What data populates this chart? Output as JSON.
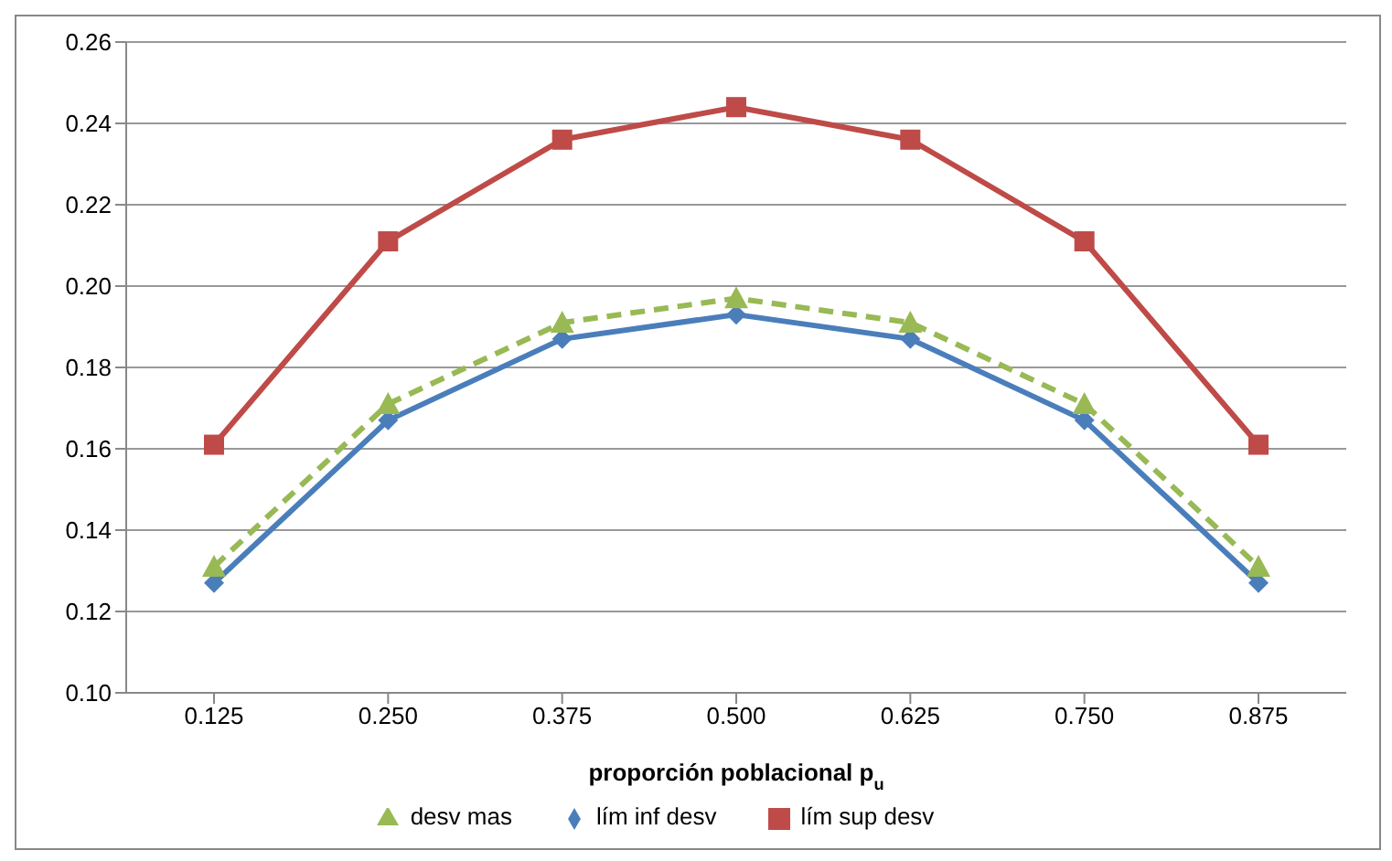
{
  "chart_data": {
    "type": "line",
    "xlabel": "proporción poblacional p$_{u}$",
    "categories": [
      "0.125",
      "0.250",
      "0.375",
      "0.500",
      "0.625",
      "0.750",
      "0.875"
    ],
    "series": [
      {
        "name": "lím inf desv",
        "color": "#4a7ebb",
        "marker": "diamond",
        "line_style": "solid",
        "values": [
          0.127,
          0.167,
          0.187,
          0.193,
          0.187,
          0.167,
          0.127
        ]
      },
      {
        "name": "lím sup desv",
        "color": "#be4b48",
        "marker": "square",
        "line_style": "solid",
        "values": [
          0.161,
          0.211,
          0.236,
          0.244,
          0.236,
          0.211,
          0.161
        ]
      },
      {
        "name": "desv mas",
        "color": "#98b954",
        "marker": "triangle",
        "line_style": "dashed",
        "values": [
          0.131,
          0.171,
          0.191,
          0.197,
          0.191,
          0.171,
          0.131
        ]
      }
    ],
    "ylim": [
      0.1,
      0.26
    ],
    "yticks": [
      {
        "value": 0.1,
        "label": "0.10"
      },
      0.12,
      0.14,
      0.16,
      0.18,
      {
        "value": 0.2,
        "label": "0.20"
      },
      0.22,
      0.24,
      0.26
    ],
    "grid": "y",
    "legend": "bottom"
  }
}
